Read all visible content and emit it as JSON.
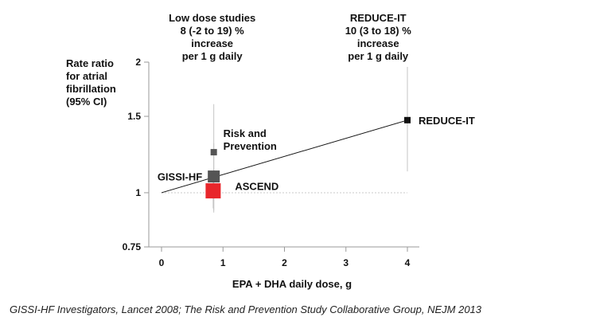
{
  "chart_data": {
    "type": "scatter",
    "title": "",
    "ylabel_lines": [
      "Rate ratio",
      "for atrial",
      "fibrillation",
      "(95% CI)"
    ],
    "xlabel": "EPA + DHA daily dose, g",
    "x_ticks": [
      0,
      1,
      2,
      3,
      4
    ],
    "x_tick_labels": [
      "0",
      "1",
      "2",
      "3",
      "4"
    ],
    "y_scale": "log",
    "y_ticks": [
      0.75,
      1,
      1.5,
      2
    ],
    "y_tick_labels": [
      "0.75",
      "1",
      "1.5",
      "2"
    ],
    "xlim": [
      0,
      4
    ],
    "ylim": [
      0.75,
      2
    ],
    "reference_line": {
      "y": 1,
      "style": "dotted"
    },
    "points": [
      {
        "label": "Risk and Prevention",
        "label_lines": [
          "Risk and",
          "Prevention"
        ],
        "x": 0.85,
        "y": 1.24,
        "ci": [
          0.9,
          1.6
        ],
        "weight": "small",
        "color": "#555555"
      },
      {
        "label": "GISSI-HF",
        "label_lines": [
          "GISSI-HF"
        ],
        "x": 0.85,
        "y": 1.09,
        "ci": [
          0.91,
          1.3
        ],
        "weight": "medium",
        "color": "#555555"
      },
      {
        "label": "ASCEND",
        "label_lines": [
          "ASCEND"
        ],
        "x": 0.84,
        "y": 1.01,
        "ci": [
          0.92,
          1.12
        ],
        "weight": "large",
        "color": "#e8262b"
      },
      {
        "label": "REDUCE-IT",
        "label_lines": [
          "REDUCE-IT"
        ],
        "x": 4.0,
        "y": 1.47,
        "ci": [
          1.12,
          1.95
        ],
        "weight": "small",
        "color": "#111111"
      }
    ],
    "trend_line": {
      "x": [
        0,
        4
      ],
      "y": [
        1.0,
        1.47
      ]
    },
    "annotations": [
      {
        "lines": [
          "Low dose studies",
          "8 (-2 to 19) %",
          "increase",
          "per 1 g daily"
        ],
        "x": 0.85
      },
      {
        "lines": [
          "REDUCE-IT",
          "10 (3 to 18) %",
          "increase",
          "per 1 g daily"
        ],
        "x": 3.55
      }
    ]
  },
  "citation": "GISSI-HF Investigators, Lancet 2008; The Risk and Prevention Study Collaborative Group, NEJM 2013"
}
